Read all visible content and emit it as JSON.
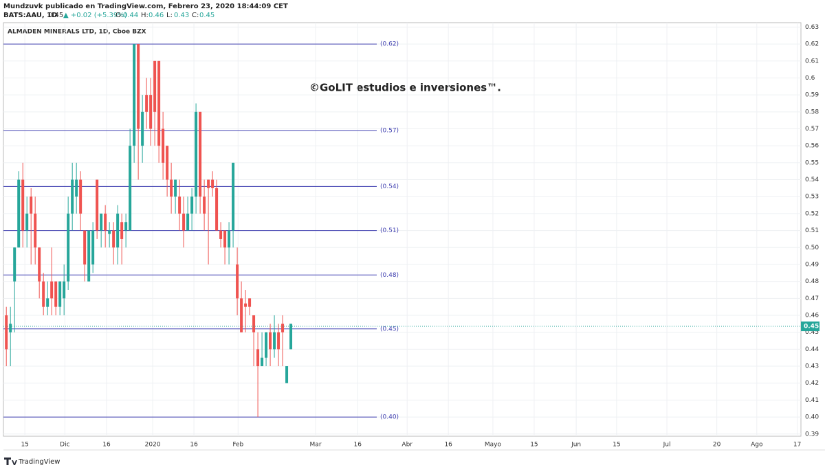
{
  "header": {
    "publisher": "Mundzuvk publicado en TradingView.com, Febrero 23, 2020 18:44:09 CET",
    "symbol": "BATS:AAU, 1D",
    "last": "0.45",
    "change": "▲ +0.02 (+5.39%)",
    "quote": [
      {
        "label": "O:",
        "value": "0.44"
      },
      {
        "label": "H:",
        "value": "0.46"
      },
      {
        "label": "L:",
        "value": "0.43"
      },
      {
        "label": "C:",
        "value": "0.45"
      }
    ]
  },
  "footer": {
    "brand": "TradingView"
  },
  "chart_data": {
    "type": "candlestick",
    "title": "ALMADEN MINERALS LTD, 1D, Cboe BZX",
    "annotation": "©GoLIT estudios e inversiones™.",
    "up_color": "#26a69a",
    "down_color": "#ef5350",
    "level_color": "#3f3fb0",
    "grid": true,
    "x": [
      0,
      1,
      2,
      3,
      4,
      5,
      6,
      7,
      8,
      9,
      10,
      11,
      12,
      13,
      14,
      15,
      16,
      17,
      18,
      19,
      20,
      21,
      22,
      23,
      24,
      25,
      26,
      27,
      28,
      29,
      30,
      31,
      32,
      33,
      34,
      35,
      36,
      37,
      38,
      39,
      40,
      41,
      42,
      43,
      44,
      45,
      46,
      47,
      48,
      49,
      50,
      51,
      52,
      53,
      54,
      55,
      56,
      57,
      58,
      59,
      60,
      61,
      62,
      63,
      64,
      65,
      66,
      67,
      68,
      69
    ],
    "open": [
      0.46,
      0.45,
      0.48,
      0.5,
      0.54,
      0.51,
      0.53,
      0.52,
      0.5,
      0.48,
      0.465,
      0.48,
      0.48,
      0.465,
      0.47,
      0.48,
      0.52,
      0.53,
      0.54,
      0.51,
      0.48,
      0.49,
      0.54,
      0.51,
      0.52,
      0.508,
      0.51,
      0.5,
      0.515,
      0.51,
      0.51,
      0.56,
      0.62,
      0.56,
      0.59,
      0.59,
      0.61,
      0.61,
      0.57,
      0.56,
      0.54,
      0.53,
      0.53,
      0.52,
      0.51,
      0.52,
      0.53,
      0.58,
      0.53,
      0.54,
      0.54,
      0.535,
      0.51,
      0.51,
      0.5,
      0.51,
      0.49,
      0.47,
      0.467,
      0.47,
      0.46,
      0.44,
      0.43,
      0.435,
      0.45,
      0.44,
      0.45,
      0.455,
      0.42,
      0.44
    ],
    "high": [
      0.465,
      0.465,
      0.5,
      0.545,
      0.55,
      0.53,
      0.535,
      0.53,
      0.5,
      0.485,
      0.48,
      0.5,
      0.48,
      0.48,
      0.49,
      0.53,
      0.55,
      0.55,
      0.545,
      0.51,
      0.51,
      0.515,
      0.54,
      0.52,
      0.525,
      0.515,
      0.515,
      0.525,
      0.52,
      0.52,
      0.57,
      0.62,
      0.62,
      0.59,
      0.6,
      0.6,
      0.61,
      0.61,
      0.58,
      0.56,
      0.55,
      0.54,
      0.54,
      0.53,
      0.53,
      0.535,
      0.585,
      0.58,
      0.54,
      0.54,
      0.545,
      0.54,
      0.515,
      0.51,
      0.515,
      0.55,
      0.5,
      0.48,
      0.475,
      0.47,
      0.46,
      0.45,
      0.45,
      0.45,
      0.455,
      0.46,
      0.455,
      0.46,
      0.43,
      0.455
    ],
    "low": [
      0.43,
      0.43,
      0.45,
      0.5,
      0.5,
      0.5,
      0.49,
      0.49,
      0.47,
      0.46,
      0.46,
      0.46,
      0.46,
      0.46,
      0.46,
      0.475,
      0.51,
      0.52,
      0.51,
      0.48,
      0.48,
      0.485,
      0.505,
      0.5,
      0.5,
      0.5,
      0.49,
      0.49,
      0.49,
      0.5,
      0.51,
      0.55,
      0.54,
      0.55,
      0.57,
      0.56,
      0.56,
      0.55,
      0.54,
      0.53,
      0.52,
      0.52,
      0.51,
      0.5,
      0.51,
      0.51,
      0.52,
      0.52,
      0.51,
      0.49,
      0.53,
      0.51,
      0.5,
      0.49,
      0.49,
      0.5,
      0.46,
      0.45,
      0.45,
      0.46,
      0.43,
      0.4,
      0.43,
      0.43,
      0.43,
      0.435,
      0.43,
      0.43,
      0.42,
      0.44
    ],
    "close": [
      0.44,
      0.455,
      0.5,
      0.54,
      0.51,
      0.52,
      0.52,
      0.5,
      0.48,
      0.465,
      0.47,
      0.47,
      0.465,
      0.48,
      0.48,
      0.52,
      0.54,
      0.54,
      0.52,
      0.49,
      0.51,
      0.51,
      0.51,
      0.52,
      0.51,
      0.51,
      0.5,
      0.52,
      0.505,
      0.515,
      0.56,
      0.62,
      0.57,
      0.58,
      0.58,
      0.57,
      0.58,
      0.56,
      0.55,
      0.54,
      0.53,
      0.54,
      0.52,
      0.51,
      0.52,
      0.53,
      0.58,
      0.53,
      0.52,
      0.535,
      0.535,
      0.51,
      0.505,
      0.5,
      0.51,
      0.55,
      0.47,
      0.45,
      0.465,
      0.465,
      0.45,
      0.43,
      0.435,
      0.45,
      0.44,
      0.45,
      0.44,
      0.45,
      0.43,
      0.455
    ],
    "ylim": [
      0.3887,
      0.6326
    ],
    "yticks": [
      0.63,
      0.62,
      0.61,
      0.6,
      0.59,
      0.58,
      0.57,
      0.56,
      0.55,
      0.54,
      0.53,
      0.52,
      0.51,
      {
        "value": 0.5,
        "label": "0.50"
      },
      0.49,
      0.48,
      0.47,
      0.46,
      0.45,
      0.44,
      0.43,
      0.42,
      0.41,
      {
        "value": 0.4,
        "label": "0.40"
      },
      0.39
    ],
    "xlim": [
      -0.7,
      192.7
    ],
    "xticks": [
      {
        "value": 4.5,
        "label": "15"
      },
      {
        "value": 14.2,
        "label": "Dic"
      },
      {
        "value": 24.3,
        "label": "16"
      },
      {
        "value": 35.5,
        "label": "2020"
      },
      {
        "value": 45.5,
        "label": "16"
      },
      {
        "value": 56.2,
        "label": "Feb"
      },
      {
        "value": 75,
        "label": "Mar"
      },
      {
        "value": 85.2,
        "label": "16"
      },
      {
        "value": 97.2,
        "label": "Abr"
      },
      {
        "value": 107.2,
        "label": "16"
      },
      {
        "value": 118,
        "label": "Mayo"
      },
      {
        "value": 128,
        "label": "15"
      },
      {
        "value": 138.2,
        "label": "Jun"
      },
      {
        "value": 148,
        "label": "15"
      },
      {
        "value": 160.2,
        "label": "Jul"
      },
      {
        "value": 172.3,
        "label": "20"
      },
      {
        "value": 182,
        "label": "Ago"
      },
      {
        "value": 191.8,
        "label": "17"
      }
    ],
    "levels": [
      {
        "value": 0.62,
        "label": "(0.62)"
      },
      {
        "value": 0.569,
        "label": "(0.57)"
      },
      {
        "value": 0.536,
        "label": "(0.54)"
      },
      {
        "value": 0.51,
        "label": "(0.51)"
      },
      {
        "value": 0.4838,
        "label": "(0.48)"
      },
      {
        "value": 0.452,
        "label": "(0.45)"
      },
      {
        "value": 0.4,
        "label": "(0.40)"
      }
    ],
    "last_price": {
      "value": 0.4535,
      "label": "0.45"
    }
  }
}
